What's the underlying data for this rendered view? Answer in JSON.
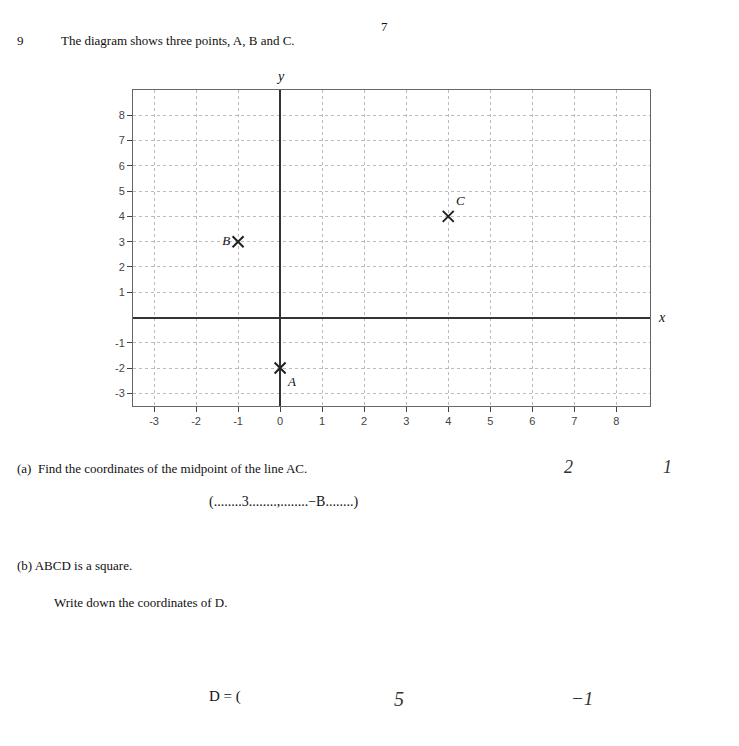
{
  "chart_data": {
    "type": "scatter",
    "xlabel": "x",
    "ylabel": "y",
    "series": [
      {
        "name": "A",
        "x": [
          0
        ],
        "values": [
          -2
        ]
      },
      {
        "name": "B",
        "x": [
          -1
        ],
        "values": [
          3
        ]
      },
      {
        "name": "C",
        "x": [
          4
        ],
        "values": [
          4
        ]
      }
    ],
    "color": "#222222",
    "marker": "x",
    "xlim": [
      -3.5,
      8.8
    ],
    "ylim": [
      -3.5,
      9.0
    ],
    "xticks": [
      -3,
      -2,
      -1,
      0,
      1,
      2,
      3,
      4,
      5,
      6,
      7,
      8
    ],
    "yticks": [
      -3,
      -2,
      -1,
      1,
      2,
      3,
      4,
      5,
      6,
      7,
      8
    ],
    "grid": true,
    "annotations": [
      "7",
      "9",
      "The diagram shows three points, A, B and C.",
      "(a)  Find the coordinates of the midpoint of the line AC.",
      "2",
      "1",
      "(........3........,........−B........)",
      "(b) ABCD is a square.",
      "Write down the coordinates of D.",
      "D = (",
      "5",
      "−1"
    ]
  }
}
